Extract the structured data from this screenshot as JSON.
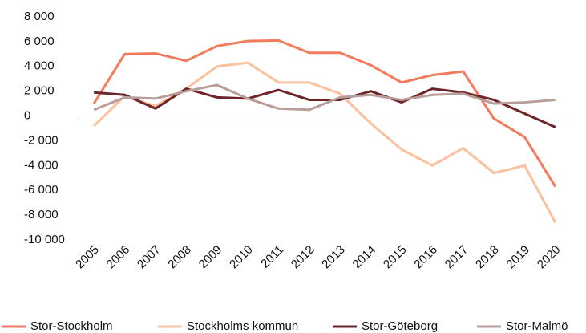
{
  "chart_data": {
    "type": "line",
    "categories": [
      "2005",
      "2006",
      "2007",
      "2008",
      "2009",
      "2010",
      "2011",
      "2012",
      "2013",
      "2014",
      "2015",
      "2016",
      "2017",
      "2018",
      "2019",
      "2020"
    ],
    "series": [
      {
        "name": "Stor-Stockholm",
        "color": "#f27b5b",
        "values": [
          1000,
          5000,
          5050,
          4450,
          5650,
          6050,
          6100,
          5100,
          5100,
          4100,
          2700,
          3300,
          3600,
          -200,
          -1700,
          -5700
        ]
      },
      {
        "name": "Stockholms kommun",
        "color": "#fbc09c",
        "values": [
          -800,
          1600,
          800,
          2200,
          4000,
          4300,
          2700,
          2700,
          1800,
          -600,
          -2700,
          -4000,
          -2600,
          -4600,
          -4000,
          -8600
        ]
      },
      {
        "name": "Stor-Göteborg",
        "color": "#6e2529",
        "values": [
          1900,
          1700,
          600,
          2200,
          1500,
          1400,
          2100,
          1300,
          1300,
          2000,
          1100,
          2200,
          1900,
          1300,
          200,
          -900
        ]
      },
      {
        "name": "Stor-Malmö",
        "color": "#b89d99",
        "values": [
          500,
          1500,
          1400,
          2000,
          2500,
          1400,
          600,
          500,
          1500,
          1700,
          1300,
          1700,
          1800,
          1000,
          1100,
          1300
        ]
      }
    ],
    "ylim": [
      -10000,
      8000
    ],
    "yticks": [
      {
        "value": 8000,
        "label": "8 000"
      },
      {
        "value": 6000,
        "label": "6 000"
      },
      {
        "value": 4000,
        "label": "4 000"
      },
      {
        "value": 2000,
        "label": "2 000"
      },
      0,
      {
        "value": -2000,
        "label": "-2 000"
      },
      {
        "value": -4000,
        "label": "-4 000"
      },
      {
        "value": -6000,
        "label": "-6 000"
      },
      {
        "value": -8000,
        "label": "-8 000"
      },
      {
        "value": -10000,
        "label": "-10 000"
      }
    ]
  }
}
